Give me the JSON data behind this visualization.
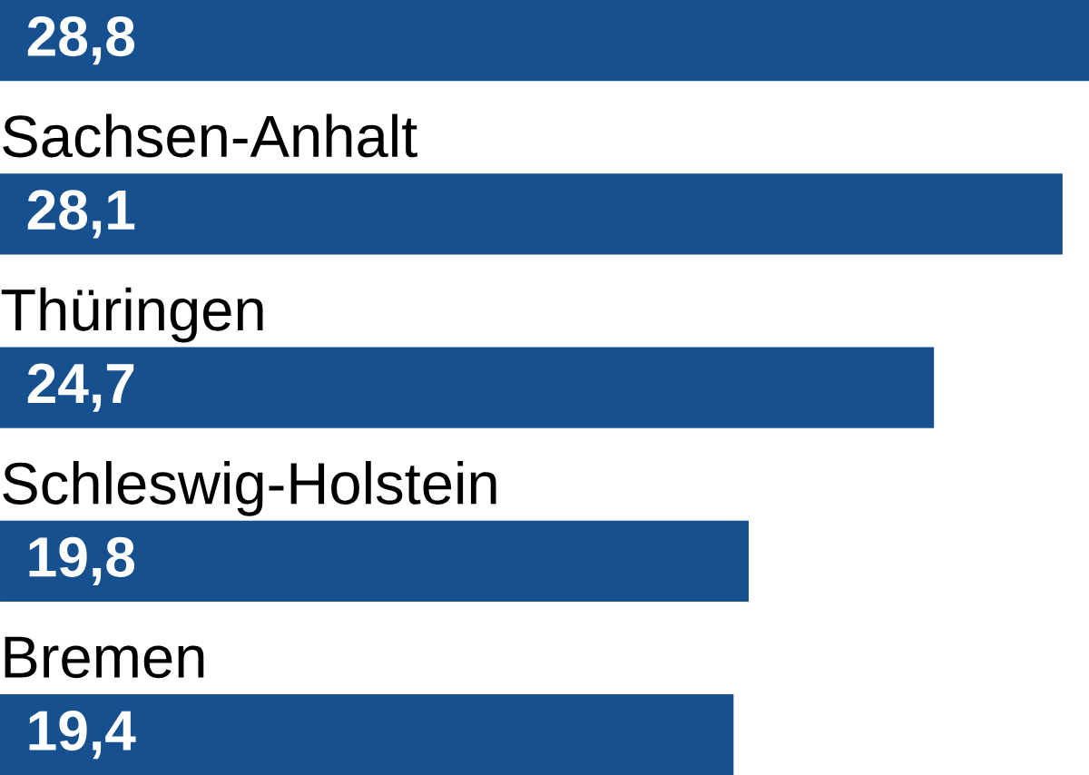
{
  "chart_data": {
    "type": "bar",
    "orientation": "horizontal",
    "categories": [
      null,
      "Sachsen-Anhalt",
      "Thüringen",
      "Schleswig-Holstein",
      "Bremen"
    ],
    "values": [
      28.8,
      28.1,
      24.7,
      19.8,
      19.4
    ],
    "value_labels": [
      "28,8",
      "28,1",
      "24,7",
      "19,8",
      "19,4"
    ],
    "color": "#17508f"
  }
}
